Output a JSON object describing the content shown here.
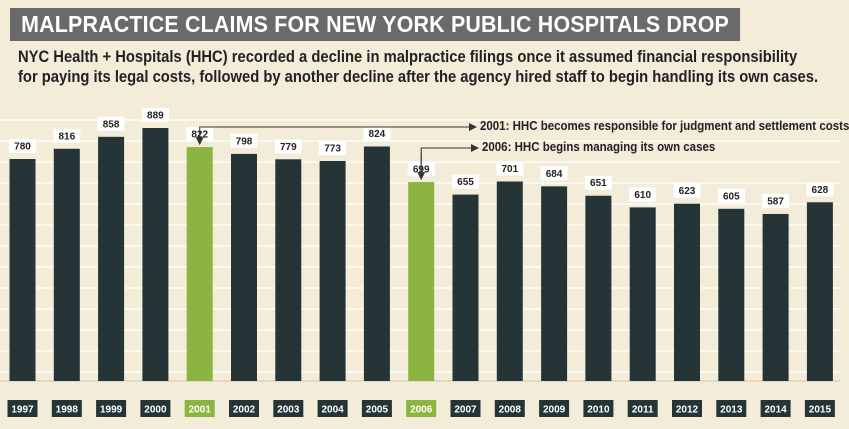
{
  "title": "MALPRACTICE CLAIMS FOR NEW YORK PUBLIC HOSPITALS DROP",
  "subtitle_lines": [
    "NYC Health + Hospitals (HHC) recorded a decline in malpractice filings once it assumed financial responsibility",
    "for paying its legal costs, followed by another decline after the agency hired staff to begin handling its own cases."
  ],
  "annotations": [
    {
      "year": "2001",
      "text": "2001: HHC becomes responsible for judgment and settlement costs"
    },
    {
      "year": "2006",
      "text": "2006: HHC begins managing its own cases"
    }
  ],
  "colors": {
    "background": "#f3ecd9",
    "bar": "#253537",
    "highlight": "#8bb441",
    "title_band": "#6a6a6a",
    "label_box": "#ffffff"
  },
  "chart_data": {
    "type": "bar",
    "categories": [
      "1997",
      "1998",
      "1999",
      "2000",
      "2001",
      "2002",
      "2003",
      "2004",
      "2005",
      "2006",
      "2007",
      "2008",
      "2009",
      "2010",
      "2011",
      "2012",
      "2013",
      "2014",
      "2015"
    ],
    "values": [
      780,
      816,
      858,
      889,
      822,
      798,
      779,
      773,
      824,
      699,
      655,
      701,
      684,
      651,
      610,
      623,
      605,
      587,
      628
    ],
    "highlighted": [
      "2001",
      "2006"
    ],
    "grid": true
  }
}
